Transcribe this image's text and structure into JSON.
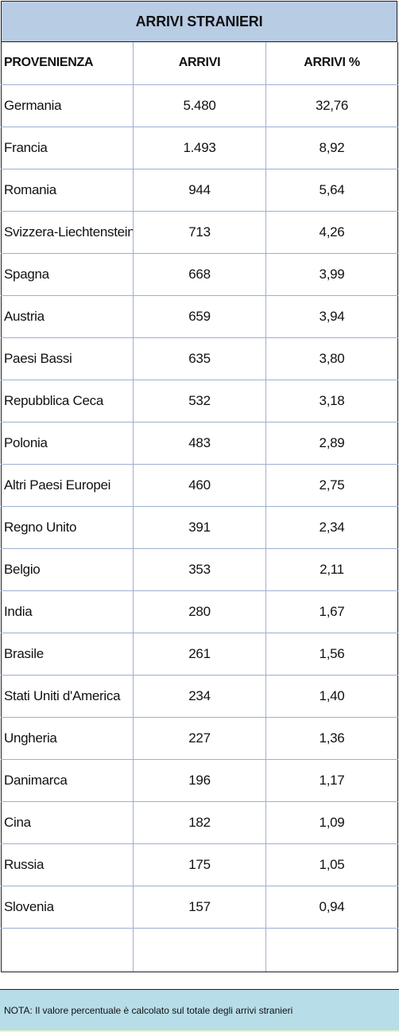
{
  "title": "ARRIVI STRANIERI",
  "columns": [
    "PROVENIENZA",
    "ARRIVI",
    "ARRIVI %"
  ],
  "rows": [
    {
      "provenienza": "Germania",
      "arrivi": "5.480",
      "percent": "32,76"
    },
    {
      "provenienza": "Francia",
      "arrivi": "1.493",
      "percent": "8,92"
    },
    {
      "provenienza": "Romania",
      "arrivi": "944",
      "percent": "5,64"
    },
    {
      "provenienza": "Svizzera-Liechtenstein",
      "arrivi": "713",
      "percent": "4,26"
    },
    {
      "provenienza": "Spagna",
      "arrivi": "668",
      "percent": "3,99"
    },
    {
      "provenienza": "Austria",
      "arrivi": "659",
      "percent": "3,94"
    },
    {
      "provenienza": "Paesi Bassi",
      "arrivi": "635",
      "percent": "3,80"
    },
    {
      "provenienza": "Repubblica Ceca",
      "arrivi": "532",
      "percent": "3,18"
    },
    {
      "provenienza": "Polonia",
      "arrivi": "483",
      "percent": "2,89"
    },
    {
      "provenienza": "Altri Paesi Europei",
      "arrivi": "460",
      "percent": "2,75"
    },
    {
      "provenienza": "Regno Unito",
      "arrivi": "391",
      "percent": "2,34"
    },
    {
      "provenienza": "Belgio",
      "arrivi": "353",
      "percent": "2,11"
    },
    {
      "provenienza": "India",
      "arrivi": "280",
      "percent": "1,67"
    },
    {
      "provenienza": "Brasile",
      "arrivi": "261",
      "percent": "1,56"
    },
    {
      "provenienza": "Stati Uniti d'America",
      "arrivi": "234",
      "percent": "1,40"
    },
    {
      "provenienza": "Ungheria",
      "arrivi": "227",
      "percent": "1,36"
    },
    {
      "provenienza": "Danimarca",
      "arrivi": "196",
      "percent": "1,17"
    },
    {
      "provenienza": "Cina",
      "arrivi": "182",
      "percent": "1,09"
    },
    {
      "provenienza": "Russia",
      "arrivi": "175",
      "percent": "1,05"
    },
    {
      "provenienza": "Slovenia",
      "arrivi": "157",
      "percent": "0,94"
    }
  ],
  "note": "NOTA: Il valore percentuale è calcolato sul totale degli arrivi stranieri",
  "colors": {
    "title_bg": "#b8cce4",
    "note_bg": "#b7dde8",
    "grid": "#9dafd0",
    "frame": "#1f1f1f"
  }
}
